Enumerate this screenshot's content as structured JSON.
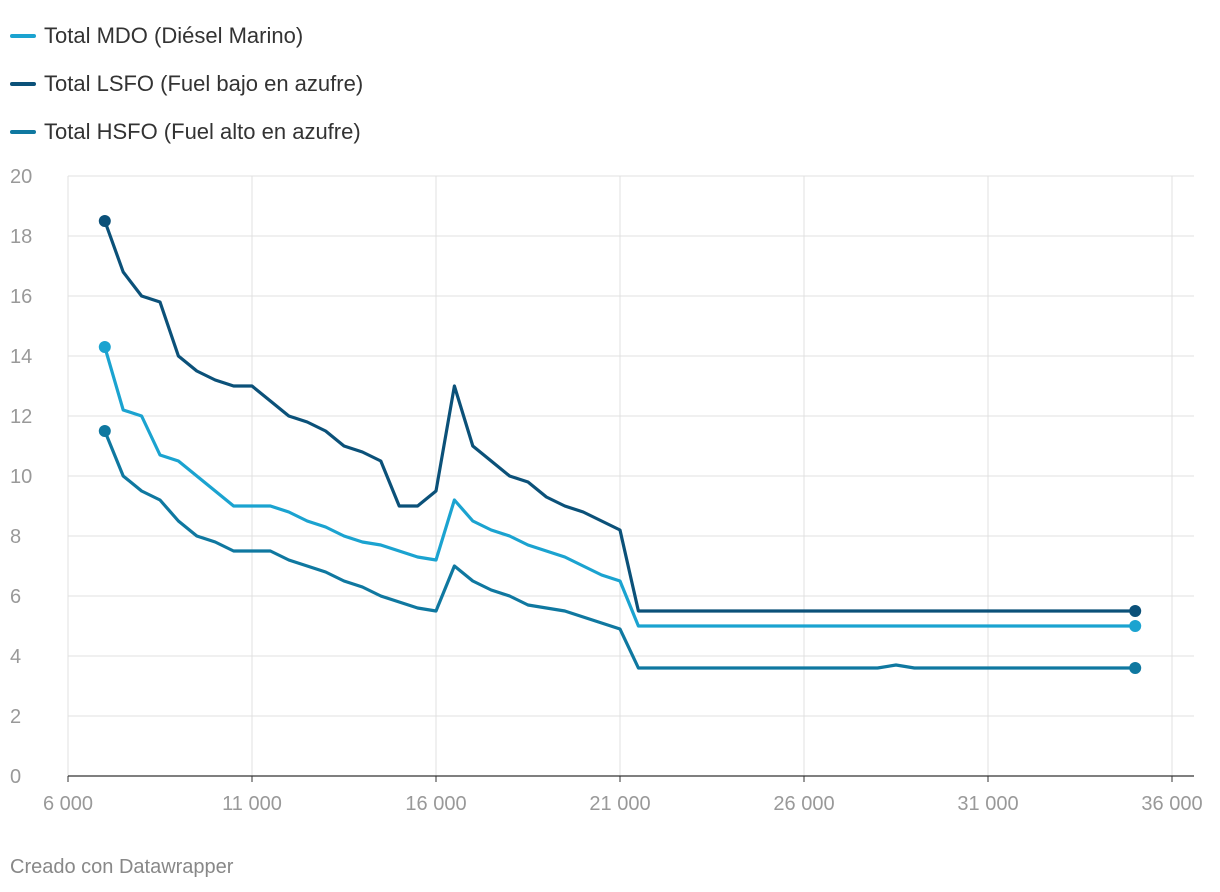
{
  "chart_data": {
    "type": "line",
    "title": "",
    "xlabel": "",
    "ylabel": "",
    "xlim": [
      6000,
      36000
    ],
    "ylim": [
      0,
      20
    ],
    "grid": true,
    "legend_position": "top-left",
    "x_ticks": [
      6000,
      11000,
      16000,
      21000,
      26000,
      31000,
      36000
    ],
    "x_tick_labels": [
      "6 000",
      "11 000",
      "16 000",
      "21 000",
      "26 000",
      "31 000",
      "36 000"
    ],
    "y_ticks": [
      0,
      2,
      4,
      6,
      8,
      10,
      12,
      14,
      16,
      18,
      20
    ],
    "y_tick_labels": [
      "0",
      "2",
      "4",
      "6",
      "8",
      "10",
      "12",
      "14",
      "16",
      "18",
      "20"
    ],
    "series": [
      {
        "name": "Total MDO (Diésel Marino)",
        "color": "#1ba3d0",
        "points": [
          [
            7000,
            14.3
          ],
          [
            7500,
            12.2
          ],
          [
            8000,
            12.0
          ],
          [
            8500,
            10.7
          ],
          [
            9000,
            10.5
          ],
          [
            9500,
            10.0
          ],
          [
            10000,
            9.5
          ],
          [
            10500,
            9.0
          ],
          [
            11000,
            9.0
          ],
          [
            11500,
            9.0
          ],
          [
            12000,
            8.8
          ],
          [
            12500,
            8.5
          ],
          [
            13000,
            8.3
          ],
          [
            13500,
            8.0
          ],
          [
            14000,
            7.8
          ],
          [
            14500,
            7.7
          ],
          [
            15000,
            7.5
          ],
          [
            15500,
            7.3
          ],
          [
            16000,
            7.2
          ],
          [
            16500,
            9.2
          ],
          [
            17000,
            8.5
          ],
          [
            17500,
            8.2
          ],
          [
            18000,
            8.0
          ],
          [
            18500,
            7.7
          ],
          [
            19000,
            7.5
          ],
          [
            19500,
            7.3
          ],
          [
            20000,
            7.0
          ],
          [
            20500,
            6.7
          ],
          [
            21000,
            6.5
          ],
          [
            21500,
            5.0
          ],
          [
            35000,
            5.0
          ]
        ]
      },
      {
        "name": "Total LSFO (Fuel bajo en azufre)",
        "color": "#0b5179",
        "points": [
          [
            7000,
            18.5
          ],
          [
            7500,
            16.8
          ],
          [
            8000,
            16.0
          ],
          [
            8500,
            15.8
          ],
          [
            9000,
            14.0
          ],
          [
            9500,
            13.5
          ],
          [
            10000,
            13.2
          ],
          [
            10500,
            13.0
          ],
          [
            11000,
            13.0
          ],
          [
            11500,
            12.5
          ],
          [
            12000,
            12.0
          ],
          [
            12500,
            11.8
          ],
          [
            13000,
            11.5
          ],
          [
            13500,
            11.0
          ],
          [
            14000,
            10.8
          ],
          [
            14500,
            10.5
          ],
          [
            15000,
            9.0
          ],
          [
            15500,
            9.0
          ],
          [
            16000,
            9.5
          ],
          [
            16500,
            13.0
          ],
          [
            17000,
            11.0
          ],
          [
            17500,
            10.5
          ],
          [
            18000,
            10.0
          ],
          [
            18500,
            9.8
          ],
          [
            19000,
            9.3
          ],
          [
            19500,
            9.0
          ],
          [
            20000,
            8.8
          ],
          [
            20500,
            8.5
          ],
          [
            21000,
            8.2
          ],
          [
            21500,
            5.5
          ],
          [
            35000,
            5.5
          ]
        ]
      },
      {
        "name": "Total HSFO (Fuel alto en azufre)",
        "color": "#0f78a0",
        "points": [
          [
            7000,
            11.5
          ],
          [
            7500,
            10.0
          ],
          [
            8000,
            9.5
          ],
          [
            8500,
            9.2
          ],
          [
            9000,
            8.5
          ],
          [
            9500,
            8.0
          ],
          [
            10000,
            7.8
          ],
          [
            10500,
            7.5
          ],
          [
            11000,
            7.5
          ],
          [
            11500,
            7.5
          ],
          [
            12000,
            7.2
          ],
          [
            12500,
            7.0
          ],
          [
            13000,
            6.8
          ],
          [
            13500,
            6.5
          ],
          [
            14000,
            6.3
          ],
          [
            14500,
            6.0
          ],
          [
            15000,
            5.8
          ],
          [
            15500,
            5.6
          ],
          [
            16000,
            5.5
          ],
          [
            16500,
            7.0
          ],
          [
            17000,
            6.5
          ],
          [
            17500,
            6.2
          ],
          [
            18000,
            6.0
          ],
          [
            18500,
            5.7
          ],
          [
            19000,
            5.6
          ],
          [
            19500,
            5.5
          ],
          [
            20000,
            5.3
          ],
          [
            20500,
            5.1
          ],
          [
            21000,
            4.9
          ],
          [
            21500,
            3.6
          ],
          [
            28000,
            3.6
          ],
          [
            28500,
            3.7
          ],
          [
            29000,
            3.6
          ],
          [
            35000,
            3.6
          ]
        ]
      }
    ]
  },
  "footer": {
    "credit": "Creado con Datawrapper"
  }
}
